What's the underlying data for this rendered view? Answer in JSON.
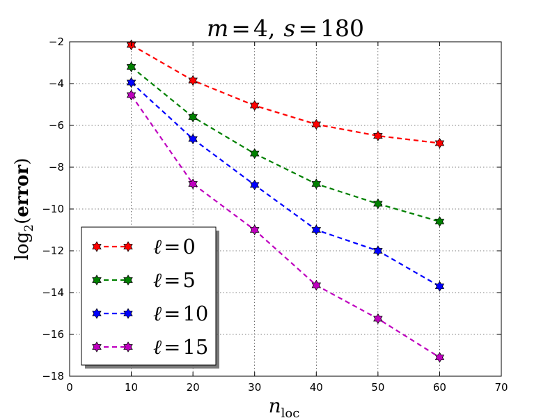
{
  "chart_data": {
    "type": "line",
    "title": {
      "var1": "m",
      "eq1": "=",
      "val1": "4",
      "sep": ",",
      "var2": "s",
      "eq2": "=",
      "val2": "180"
    },
    "xlabel": {
      "base": "n",
      "sub": "loc"
    },
    "ylabel": {
      "func": "log",
      "sub": "2",
      "open": "(",
      "arg": "error",
      "close": ")"
    },
    "xlim": [
      0,
      70
    ],
    "ylim": [
      -18,
      -2
    ],
    "xticks": [
      0,
      10,
      20,
      30,
      40,
      50,
      60,
      70
    ],
    "yticks": [
      -18,
      -16,
      -14,
      -12,
      -10,
      -8,
      -6,
      -4,
      -2
    ],
    "xtick_labels": [
      "0",
      "10",
      "20",
      "30",
      "40",
      "50",
      "60",
      "70"
    ],
    "ytick_labels": [
      "−18",
      "−16",
      "−14",
      "−12",
      "−10",
      "−8",
      "−6",
      "−4",
      "−2"
    ],
    "grid": true,
    "legend_position": "lower-left",
    "x": [
      10,
      20,
      30,
      40,
      50,
      60
    ],
    "series": [
      {
        "name": "ℓ = 0",
        "var": "ℓ",
        "eq": "=",
        "val": "0",
        "color": "#ff0000",
        "values": [
          -2.15,
          -3.85,
          -5.05,
          -5.95,
          -6.5,
          -6.85
        ]
      },
      {
        "name": "ℓ = 5",
        "var": "ℓ",
        "eq": "=",
        "val": "5",
        "color": "#008000",
        "values": [
          -3.2,
          -5.6,
          -7.35,
          -8.8,
          -9.75,
          -10.6
        ]
      },
      {
        "name": "ℓ = 10",
        "var": "ℓ",
        "eq": "=",
        "val": "10",
        "color": "#0000ff",
        "values": [
          -3.95,
          -6.65,
          -8.85,
          -11.0,
          -12.0,
          -13.7
        ]
      },
      {
        "name": "ℓ = 15",
        "var": "ℓ",
        "eq": "=",
        "val": "15",
        "color": "#bf00bf",
        "values": [
          -4.55,
          -8.8,
          -11.0,
          -13.65,
          -15.25,
          -17.1
        ]
      }
    ]
  }
}
